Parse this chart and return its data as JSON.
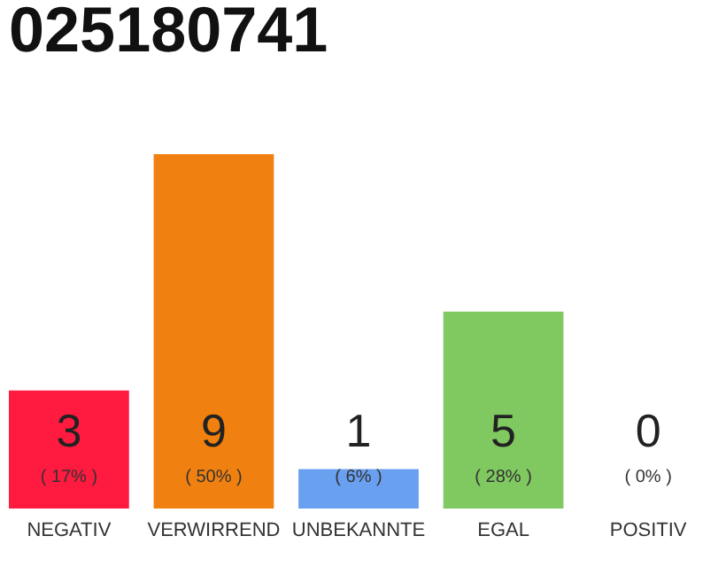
{
  "chart_data": {
    "type": "bar",
    "title": "025180741",
    "categories": [
      "NEGATIV",
      "VERWIRREND",
      "UNBEKANNTE",
      "EGAL",
      "POSITIV"
    ],
    "values": [
      3,
      9,
      1,
      5,
      0
    ],
    "colors": [
      "#ff1a40",
      "#f0800f",
      "#6aa0f0",
      "#80c860",
      "#d0d0d0"
    ],
    "data_labels": true,
    "annotations": [
      "( 17% )",
      "( 50% )",
      "( 6% )",
      "( 28% )",
      "( 0% )"
    ]
  }
}
